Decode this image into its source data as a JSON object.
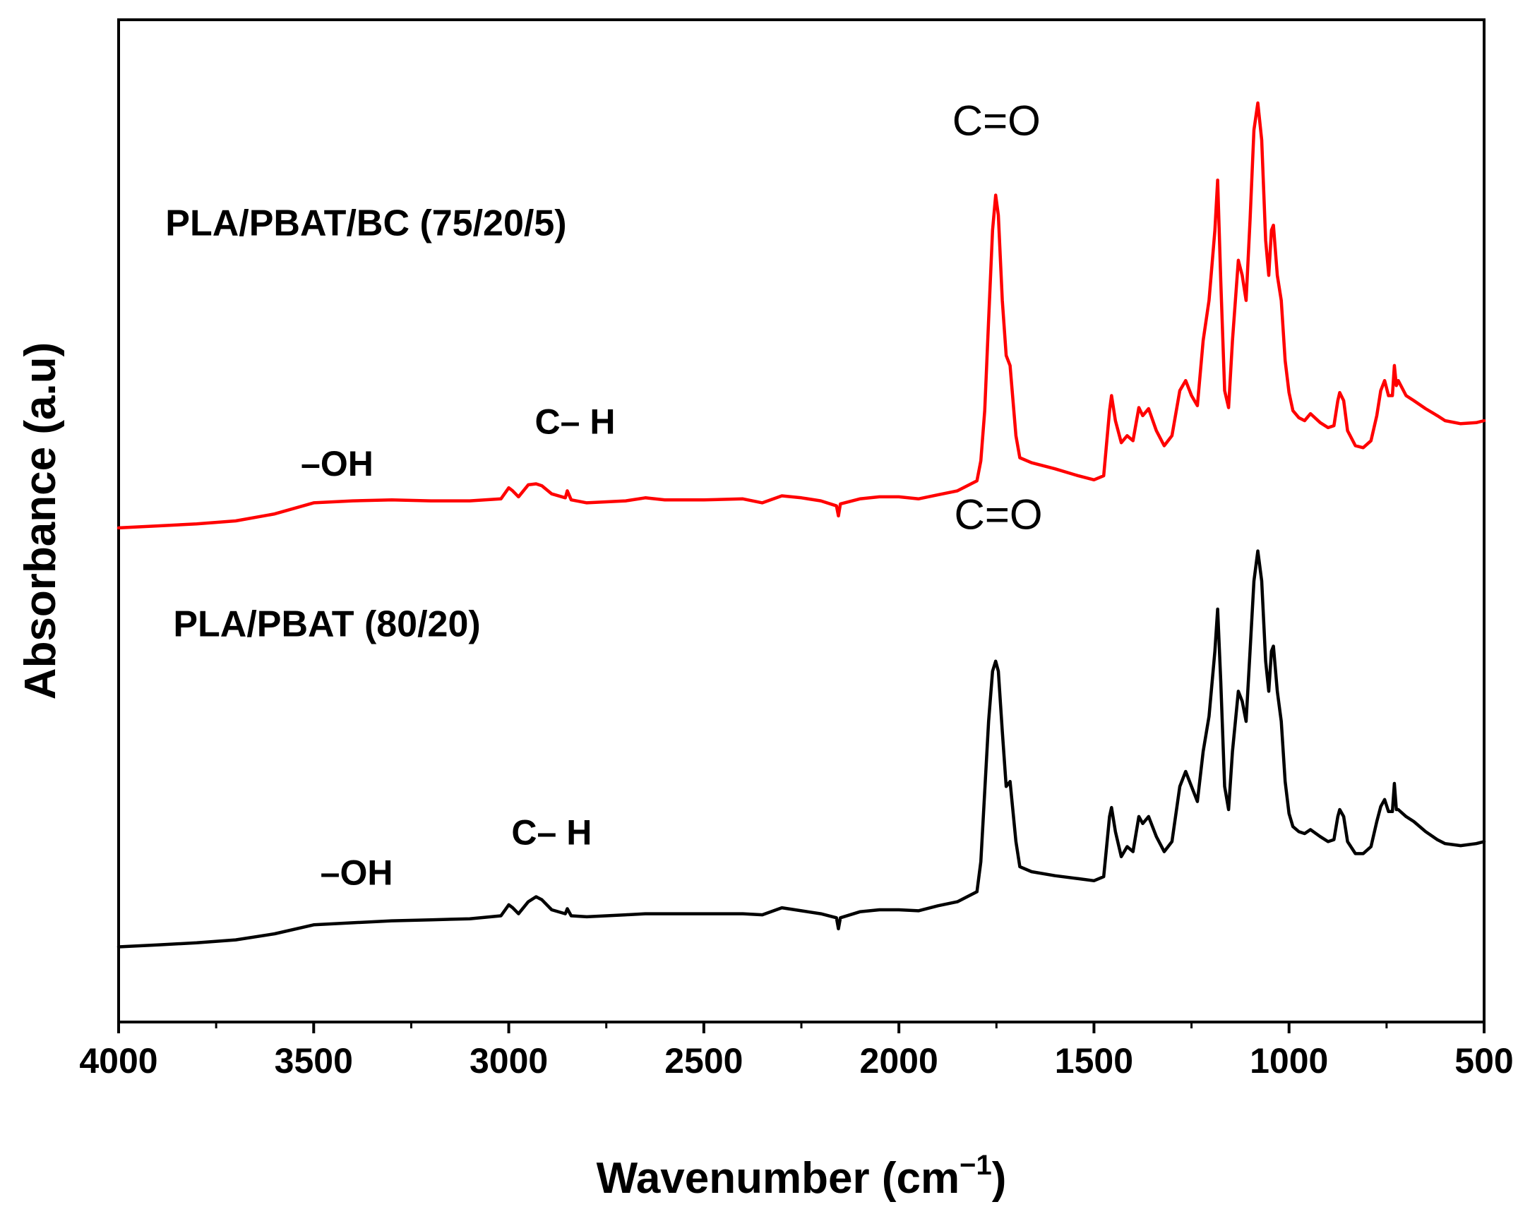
{
  "chart_data": {
    "type": "line",
    "title": "",
    "xlabel": "Wavenumber (cm",
    "xlabel_sup": "−1",
    "xlabel_close": ")",
    "ylabel": "Absorbance (a.u)",
    "xlim": [
      4000,
      500
    ],
    "x_reversed": true,
    "ylim": [
      0,
      1
    ],
    "y_ticks_shown": false,
    "grid": false,
    "xticks": [
      4000,
      3500,
      3000,
      2500,
      2000,
      1500,
      1000,
      500
    ],
    "xtick_labels": [
      "4000",
      "3500",
      "3000",
      "2500",
      "2000",
      "1500",
      "1000",
      "500"
    ],
    "series": [
      {
        "name": "PLA/PBAT/BC (75/20/5)",
        "color": "#ff0000",
        "points": [
          [
            4000,
            0.493
          ],
          [
            3900,
            0.495
          ],
          [
            3800,
            0.497
          ],
          [
            3700,
            0.5
          ],
          [
            3600,
            0.507
          ],
          [
            3500,
            0.518
          ],
          [
            3400,
            0.52
          ],
          [
            3300,
            0.521
          ],
          [
            3200,
            0.52
          ],
          [
            3100,
            0.52
          ],
          [
            3020,
            0.522
          ],
          [
            3000,
            0.533
          ],
          [
            2990,
            0.53
          ],
          [
            2975,
            0.524
          ],
          [
            2950,
            0.536
          ],
          [
            2930,
            0.537
          ],
          [
            2915,
            0.535
          ],
          [
            2890,
            0.527
          ],
          [
            2855,
            0.523
          ],
          [
            2850,
            0.53
          ],
          [
            2840,
            0.521
          ],
          [
            2800,
            0.518
          ],
          [
            2700,
            0.52
          ],
          [
            2650,
            0.523
          ],
          [
            2600,
            0.521
          ],
          [
            2500,
            0.521
          ],
          [
            2400,
            0.522
          ],
          [
            2350,
            0.518
          ],
          [
            2300,
            0.525
          ],
          [
            2250,
            0.523
          ],
          [
            2200,
            0.52
          ],
          [
            2160,
            0.515
          ],
          [
            2155,
            0.505
          ],
          [
            2150,
            0.517
          ],
          [
            2100,
            0.522
          ],
          [
            2050,
            0.524
          ],
          [
            2000,
            0.524
          ],
          [
            1950,
            0.522
          ],
          [
            1900,
            0.526
          ],
          [
            1850,
            0.53
          ],
          [
            1800,
            0.54
          ],
          [
            1790,
            0.56
          ],
          [
            1780,
            0.61
          ],
          [
            1770,
            0.7
          ],
          [
            1760,
            0.79
          ],
          [
            1752,
            0.825
          ],
          [
            1745,
            0.805
          ],
          [
            1735,
            0.72
          ],
          [
            1725,
            0.665
          ],
          [
            1715,
            0.655
          ],
          [
            1700,
            0.585
          ],
          [
            1690,
            0.563
          ],
          [
            1660,
            0.558
          ],
          [
            1600,
            0.552
          ],
          [
            1540,
            0.545
          ],
          [
            1500,
            0.541
          ],
          [
            1475,
            0.545
          ],
          [
            1460,
            0.61
          ],
          [
            1455,
            0.625
          ],
          [
            1445,
            0.6
          ],
          [
            1430,
            0.578
          ],
          [
            1415,
            0.585
          ],
          [
            1400,
            0.58
          ],
          [
            1385,
            0.613
          ],
          [
            1375,
            0.605
          ],
          [
            1360,
            0.612
          ],
          [
            1340,
            0.59
          ],
          [
            1320,
            0.575
          ],
          [
            1300,
            0.585
          ],
          [
            1280,
            0.63
          ],
          [
            1265,
            0.64
          ],
          [
            1250,
            0.625
          ],
          [
            1235,
            0.615
          ],
          [
            1220,
            0.68
          ],
          [
            1205,
            0.72
          ],
          [
            1190,
            0.79
          ],
          [
            1183,
            0.84
          ],
          [
            1175,
            0.74
          ],
          [
            1165,
            0.63
          ],
          [
            1155,
            0.613
          ],
          [
            1145,
            0.68
          ],
          [
            1130,
            0.76
          ],
          [
            1120,
            0.745
          ],
          [
            1110,
            0.72
          ],
          [
            1100,
            0.8
          ],
          [
            1090,
            0.89
          ],
          [
            1080,
            0.917
          ],
          [
            1070,
            0.88
          ],
          [
            1060,
            0.78
          ],
          [
            1052,
            0.745
          ],
          [
            1045,
            0.79
          ],
          [
            1040,
            0.795
          ],
          [
            1030,
            0.745
          ],
          [
            1020,
            0.72
          ],
          [
            1010,
            0.66
          ],
          [
            1000,
            0.628
          ],
          [
            990,
            0.61
          ],
          [
            975,
            0.603
          ],
          [
            960,
            0.6
          ],
          [
            945,
            0.607
          ],
          [
            920,
            0.598
          ],
          [
            900,
            0.593
          ],
          [
            885,
            0.595
          ],
          [
            875,
            0.62
          ],
          [
            870,
            0.628
          ],
          [
            860,
            0.62
          ],
          [
            850,
            0.59
          ],
          [
            830,
            0.575
          ],
          [
            810,
            0.573
          ],
          [
            790,
            0.58
          ],
          [
            775,
            0.605
          ],
          [
            765,
            0.63
          ],
          [
            755,
            0.64
          ],
          [
            745,
            0.625
          ],
          [
            735,
            0.625
          ],
          [
            730,
            0.655
          ],
          [
            725,
            0.635
          ],
          [
            720,
            0.64
          ],
          [
            700,
            0.625
          ],
          [
            680,
            0.62
          ],
          [
            650,
            0.612
          ],
          [
            620,
            0.605
          ],
          [
            600,
            0.6
          ],
          [
            560,
            0.597
          ],
          [
            520,
            0.598
          ],
          [
            500,
            0.6
          ]
        ]
      },
      {
        "name": "PLA/PBAT (80/20)",
        "color": "#000000",
        "points": [
          [
            4000,
            0.075
          ],
          [
            3900,
            0.077
          ],
          [
            3800,
            0.079
          ],
          [
            3700,
            0.082
          ],
          [
            3600,
            0.088
          ],
          [
            3500,
            0.097
          ],
          [
            3400,
            0.099
          ],
          [
            3300,
            0.101
          ],
          [
            3200,
            0.102
          ],
          [
            3100,
            0.103
          ],
          [
            3020,
            0.106
          ],
          [
            3000,
            0.117
          ],
          [
            2990,
            0.114
          ],
          [
            2975,
            0.108
          ],
          [
            2950,
            0.12
          ],
          [
            2930,
            0.125
          ],
          [
            2915,
            0.122
          ],
          [
            2890,
            0.112
          ],
          [
            2855,
            0.108
          ],
          [
            2850,
            0.113
          ],
          [
            2840,
            0.106
          ],
          [
            2800,
            0.105
          ],
          [
            2700,
            0.107
          ],
          [
            2650,
            0.108
          ],
          [
            2600,
            0.108
          ],
          [
            2500,
            0.108
          ],
          [
            2400,
            0.108
          ],
          [
            2350,
            0.107
          ],
          [
            2300,
            0.114
          ],
          [
            2250,
            0.111
          ],
          [
            2200,
            0.108
          ],
          [
            2160,
            0.104
          ],
          [
            2155,
            0.093
          ],
          [
            2150,
            0.104
          ],
          [
            2100,
            0.11
          ],
          [
            2050,
            0.112
          ],
          [
            2000,
            0.112
          ],
          [
            1950,
            0.111
          ],
          [
            1900,
            0.116
          ],
          [
            1850,
            0.12
          ],
          [
            1800,
            0.13
          ],
          [
            1790,
            0.16
          ],
          [
            1780,
            0.23
          ],
          [
            1770,
            0.3
          ],
          [
            1760,
            0.35
          ],
          [
            1752,
            0.36
          ],
          [
            1745,
            0.35
          ],
          [
            1735,
            0.29
          ],
          [
            1725,
            0.235
          ],
          [
            1715,
            0.24
          ],
          [
            1700,
            0.18
          ],
          [
            1690,
            0.155
          ],
          [
            1660,
            0.15
          ],
          [
            1600,
            0.146
          ],
          [
            1540,
            0.143
          ],
          [
            1500,
            0.141
          ],
          [
            1475,
            0.145
          ],
          [
            1460,
            0.205
          ],
          [
            1455,
            0.214
          ],
          [
            1445,
            0.19
          ],
          [
            1430,
            0.165
          ],
          [
            1415,
            0.175
          ],
          [
            1400,
            0.17
          ],
          [
            1385,
            0.205
          ],
          [
            1375,
            0.198
          ],
          [
            1360,
            0.205
          ],
          [
            1340,
            0.185
          ],
          [
            1320,
            0.17
          ],
          [
            1300,
            0.18
          ],
          [
            1280,
            0.235
          ],
          [
            1265,
            0.25
          ],
          [
            1250,
            0.235
          ],
          [
            1235,
            0.22
          ],
          [
            1220,
            0.27
          ],
          [
            1205,
            0.305
          ],
          [
            1190,
            0.37
          ],
          [
            1183,
            0.412
          ],
          [
            1175,
            0.34
          ],
          [
            1165,
            0.235
          ],
          [
            1155,
            0.212
          ],
          [
            1145,
            0.27
          ],
          [
            1130,
            0.33
          ],
          [
            1120,
            0.32
          ],
          [
            1110,
            0.3
          ],
          [
            1100,
            0.37
          ],
          [
            1090,
            0.44
          ],
          [
            1080,
            0.47
          ],
          [
            1070,
            0.44
          ],
          [
            1060,
            0.36
          ],
          [
            1052,
            0.33
          ],
          [
            1045,
            0.37
          ],
          [
            1040,
            0.375
          ],
          [
            1030,
            0.33
          ],
          [
            1020,
            0.3
          ],
          [
            1010,
            0.24
          ],
          [
            1000,
            0.208
          ],
          [
            990,
            0.195
          ],
          [
            975,
            0.19
          ],
          [
            960,
            0.188
          ],
          [
            945,
            0.192
          ],
          [
            920,
            0.185
          ],
          [
            900,
            0.18
          ],
          [
            885,
            0.182
          ],
          [
            875,
            0.205
          ],
          [
            870,
            0.212
          ],
          [
            860,
            0.205
          ],
          [
            850,
            0.18
          ],
          [
            830,
            0.168
          ],
          [
            810,
            0.168
          ],
          [
            790,
            0.175
          ],
          [
            775,
            0.2
          ],
          [
            765,
            0.215
          ],
          [
            755,
            0.222
          ],
          [
            745,
            0.21
          ],
          [
            735,
            0.21
          ],
          [
            730,
            0.238
          ],
          [
            725,
            0.212
          ],
          [
            720,
            0.212
          ],
          [
            700,
            0.205
          ],
          [
            680,
            0.2
          ],
          [
            650,
            0.19
          ],
          [
            620,
            0.182
          ],
          [
            600,
            0.178
          ],
          [
            560,
            0.176
          ],
          [
            520,
            0.178
          ],
          [
            500,
            0.18
          ]
        ]
      }
    ],
    "annotations": [
      {
        "text": "PLA/PBAT/BC (75/20/5)",
        "x": 3880,
        "y": 0.785,
        "style": "series-label"
      },
      {
        "text": "PLA/PBAT (80/20)",
        "x": 3860,
        "y": 0.385,
        "style": "series-label"
      },
      {
        "text": "–OH",
        "x": 3440,
        "y": 0.545,
        "style": "annot-bold"
      },
      {
        "text": "C– H",
        "x": 2830,
        "y": 0.587,
        "style": "annot-bold"
      },
      {
        "text": "C=O",
        "x": 1750,
        "y": 0.885,
        "style": "annot-co"
      },
      {
        "text": "–OH",
        "x": 3390,
        "y": 0.137,
        "style": "annot-bold"
      },
      {
        "text": "C– H",
        "x": 2890,
        "y": 0.177,
        "style": "annot-bold"
      },
      {
        "text": "C=O",
        "x": 1745,
        "y": 0.492,
        "style": "annot-co"
      }
    ]
  }
}
